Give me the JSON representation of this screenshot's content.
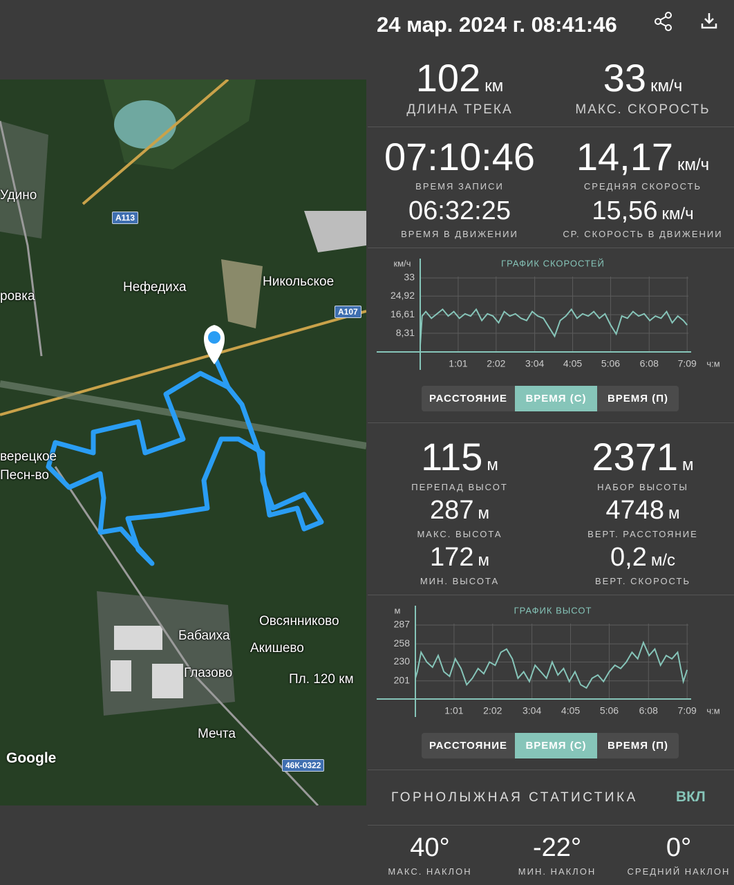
{
  "header": {
    "datetime": "24 мар. 2024 г. 08:41:46"
  },
  "stats": {
    "distance": {
      "value": "102",
      "unit": "км",
      "label": "ДЛИНА ТРЕКА"
    },
    "max_speed": {
      "value": "33",
      "unit": "км/ч",
      "label": "МАКС. СКОРОСТЬ"
    },
    "record_time": {
      "value": "07:10:46",
      "label": "ВРЕМЯ ЗАПИСИ"
    },
    "avg_speed": {
      "value": "14,17",
      "unit": "км/ч",
      "label": "СРЕДНЯЯ СКОРОСТЬ"
    },
    "moving_time": {
      "value": "06:32:25",
      "label": "ВРЕМЯ В ДВИЖЕНИИ"
    },
    "moving_avg_speed": {
      "value": "15,56",
      "unit": "км/ч",
      "label": "СР. СКОРОСТЬ В ДВИЖЕНИИ"
    }
  },
  "altitude_stats": {
    "elevation_diff": {
      "value": "115",
      "unit": "м",
      "label": "ПЕРЕПАД ВЫСОТ"
    },
    "elevation_gain": {
      "value": "2371",
      "unit": "м",
      "label": "НАБОР ВЫСОТЫ"
    },
    "max_altitude": {
      "value": "287",
      "unit": "м",
      "label": "МАКС. ВЫСОТА"
    },
    "vertical_distance": {
      "value": "4748",
      "unit": "м",
      "label": "ВЕРТ. РАССТОЯНИЕ"
    },
    "min_altitude": {
      "value": "172",
      "unit": "м",
      "label": "МИН. ВЫСОТА"
    },
    "vertical_speed": {
      "value": "0,2",
      "unit": "м/с",
      "label": "ВЕРТ. СКОРОСТЬ"
    }
  },
  "chart_data": [
    {
      "type": "line",
      "title": "ГРАФИК СКОРОСТЕЙ",
      "y_label": "км/ч",
      "x_label": "ч:м",
      "color": "#86c5b9",
      "grid": true,
      "x": [
        0,
        3,
        9,
        18,
        27,
        36,
        45,
        54,
        63,
        72,
        81,
        90,
        99,
        108,
        117,
        126,
        135,
        144,
        153,
        162,
        171,
        180,
        189,
        198,
        207,
        216,
        225,
        234,
        243,
        252,
        261,
        270,
        279,
        288,
        297,
        306,
        315,
        324,
        333,
        342,
        351,
        360,
        369,
        378,
        387,
        396,
        405,
        414,
        423,
        429
      ],
      "values": [
        3,
        16,
        18,
        15,
        17,
        19,
        16,
        18,
        15,
        17,
        16,
        19,
        14,
        17,
        16,
        13,
        18,
        16,
        17,
        15,
        14,
        18,
        16,
        15,
        11,
        7,
        14,
        16,
        19,
        15,
        17,
        16,
        18,
        15,
        17,
        12,
        8,
        16,
        15,
        18,
        16,
        17,
        14,
        16,
        15,
        18,
        13,
        16,
        14,
        12
      ],
      "xlim": [
        0,
        431
      ],
      "ylim": [
        0,
        33
      ],
      "xticks": [
        {
          "value": 61,
          "label": "1:01"
        },
        {
          "value": 122,
          "label": "2:02"
        },
        {
          "value": 184,
          "label": "3:04"
        },
        {
          "value": 245,
          "label": "4:05"
        },
        {
          "value": 306,
          "label": "5:06"
        },
        {
          "value": 368,
          "label": "6:08"
        },
        {
          "value": 429,
          "label": "7:09"
        }
      ],
      "yticks": [
        {
          "value": 8.31,
          "label": "8,31"
        },
        {
          "value": 16.61,
          "label": "16,61"
        },
        {
          "value": 24.92,
          "label": "24,92"
        },
        33
      ],
      "buttons": [
        "РАССТОЯНИЕ",
        "ВРЕМЯ (С)",
        "ВРЕМЯ (П)"
      ]
    },
    {
      "type": "line",
      "title": "ГРАФИК ВЫСОТ",
      "y_label": "м",
      "x_label": "ч:м",
      "color": "#86c5b9",
      "grid": true,
      "x": [
        0,
        3,
        9,
        18,
        27,
        36,
        45,
        54,
        63,
        72,
        81,
        90,
        99,
        108,
        117,
        126,
        135,
        144,
        153,
        162,
        171,
        180,
        189,
        198,
        207,
        216,
        225,
        234,
        243,
        252,
        261,
        270,
        279,
        288,
        297,
        306,
        315,
        324,
        333,
        342,
        351,
        360,
        369,
        378,
        387,
        396,
        405,
        414,
        423,
        429
      ],
      "values": [
        205,
        215,
        245,
        230,
        222,
        240,
        215,
        208,
        235,
        220,
        195,
        205,
        220,
        212,
        230,
        225,
        245,
        250,
        235,
        205,
        215,
        200,
        225,
        215,
        205,
        230,
        210,
        220,
        200,
        215,
        195,
        190,
        205,
        210,
        200,
        215,
        225,
        220,
        230,
        245,
        235,
        260,
        240,
        250,
        225,
        240,
        235,
        245,
        200,
        218
      ],
      "xlim": [
        0,
        431
      ],
      "ylim": [
        173,
        287
      ],
      "xticks": [
        {
          "value": 61,
          "label": "1:01"
        },
        {
          "value": 122,
          "label": "2:02"
        },
        {
          "value": 184,
          "label": "3:04"
        },
        {
          "value": 245,
          "label": "4:05"
        },
        {
          "value": 306,
          "label": "5:06"
        },
        {
          "value": 368,
          "label": "6:08"
        },
        {
          "value": 429,
          "label": "7:09"
        }
      ],
      "yticks": [
        201,
        230,
        258,
        287
      ],
      "buttons": [
        "РАССТОЯНИЕ",
        "ВРЕМЯ (С)",
        "ВРЕМЯ (П)"
      ]
    }
  ],
  "ski": {
    "title": "ГОРНОЛЫЖНАЯ СТАТИСТИКА",
    "toggle": "ВКЛ",
    "max_slope": {
      "value": "40°",
      "label": "МАКС. НАКЛОН"
    },
    "min_slope": {
      "value": "-22°",
      "label": "МИН. НАКЛОН"
    },
    "avg_slope": {
      "value": "0°",
      "label": "СРЕДНИЙ НАКЛОН"
    }
  },
  "map": {
    "places": [
      "Удино",
      "ровка",
      "Нефедиха",
      "Никольское",
      "верецкое",
      "Песн-во",
      "Овсянниково",
      "Бабаиха",
      "Акишево",
      "Глазово",
      "Пл. 120 км",
      "Мечта"
    ],
    "roads": [
      "А113",
      "А107",
      "46К-0322"
    ],
    "attribution": "Google"
  }
}
